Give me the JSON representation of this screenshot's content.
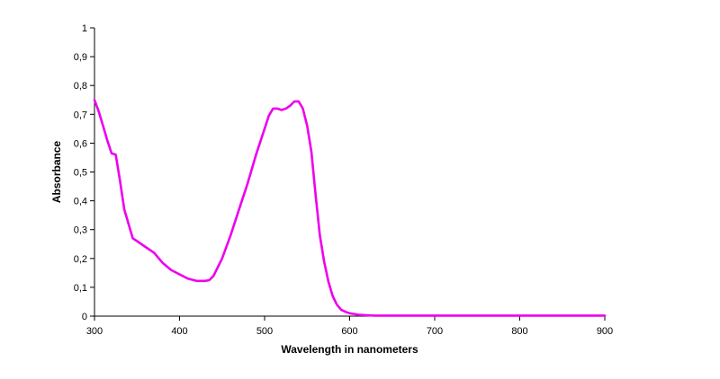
{
  "chart_data": {
    "type": "line",
    "title": "",
    "xlabel": "Wavelength in nanometers",
    "ylabel": "Absorbance",
    "xlim": [
      300,
      900
    ],
    "ylim": [
      0,
      1
    ],
    "grid": false,
    "legend": "none",
    "x_ticks": [
      300,
      400,
      500,
      600,
      700,
      800,
      900
    ],
    "x_tick_labels": [
      "300",
      "400",
      "500",
      "600",
      "700",
      "800",
      "900"
    ],
    "y_ticks": [
      0,
      0.1,
      0.2,
      0.3,
      0.4,
      0.5,
      0.6,
      0.7,
      0.8,
      0.9,
      1
    ],
    "y_tick_labels": [
      "0",
      "0,1",
      "0,2",
      "0,3",
      "0,4",
      "0,5",
      "0,6",
      "0,7",
      "0,8",
      "0,9",
      "1"
    ],
    "series": [
      {
        "color": "#ee00ee",
        "x": [
          300,
          305,
          310,
          315,
          320,
          325,
          330,
          335,
          340,
          345,
          350,
          360,
          370,
          380,
          390,
          400,
          410,
          420,
          430,
          435,
          440,
          450,
          460,
          470,
          480,
          490,
          500,
          505,
          510,
          515,
          520,
          525,
          530,
          535,
          540,
          545,
          550,
          555,
          560,
          565,
          570,
          575,
          580,
          585,
          590,
          595,
          600,
          610,
          620,
          630,
          650,
          700,
          800,
          900
        ],
        "y": [
          0.75,
          0.71,
          0.66,
          0.61,
          0.565,
          0.56,
          0.47,
          0.37,
          0.32,
          0.27,
          0.26,
          0.24,
          0.22,
          0.185,
          0.16,
          0.145,
          0.13,
          0.122,
          0.122,
          0.125,
          0.14,
          0.2,
          0.28,
          0.37,
          0.46,
          0.56,
          0.65,
          0.695,
          0.72,
          0.72,
          0.715,
          0.72,
          0.73,
          0.745,
          0.745,
          0.72,
          0.66,
          0.57,
          0.42,
          0.28,
          0.19,
          0.12,
          0.07,
          0.04,
          0.022,
          0.015,
          0.01,
          0.005,
          0.003,
          0.002,
          0.002,
          0.002,
          0.002,
          0.002
        ]
      }
    ]
  }
}
